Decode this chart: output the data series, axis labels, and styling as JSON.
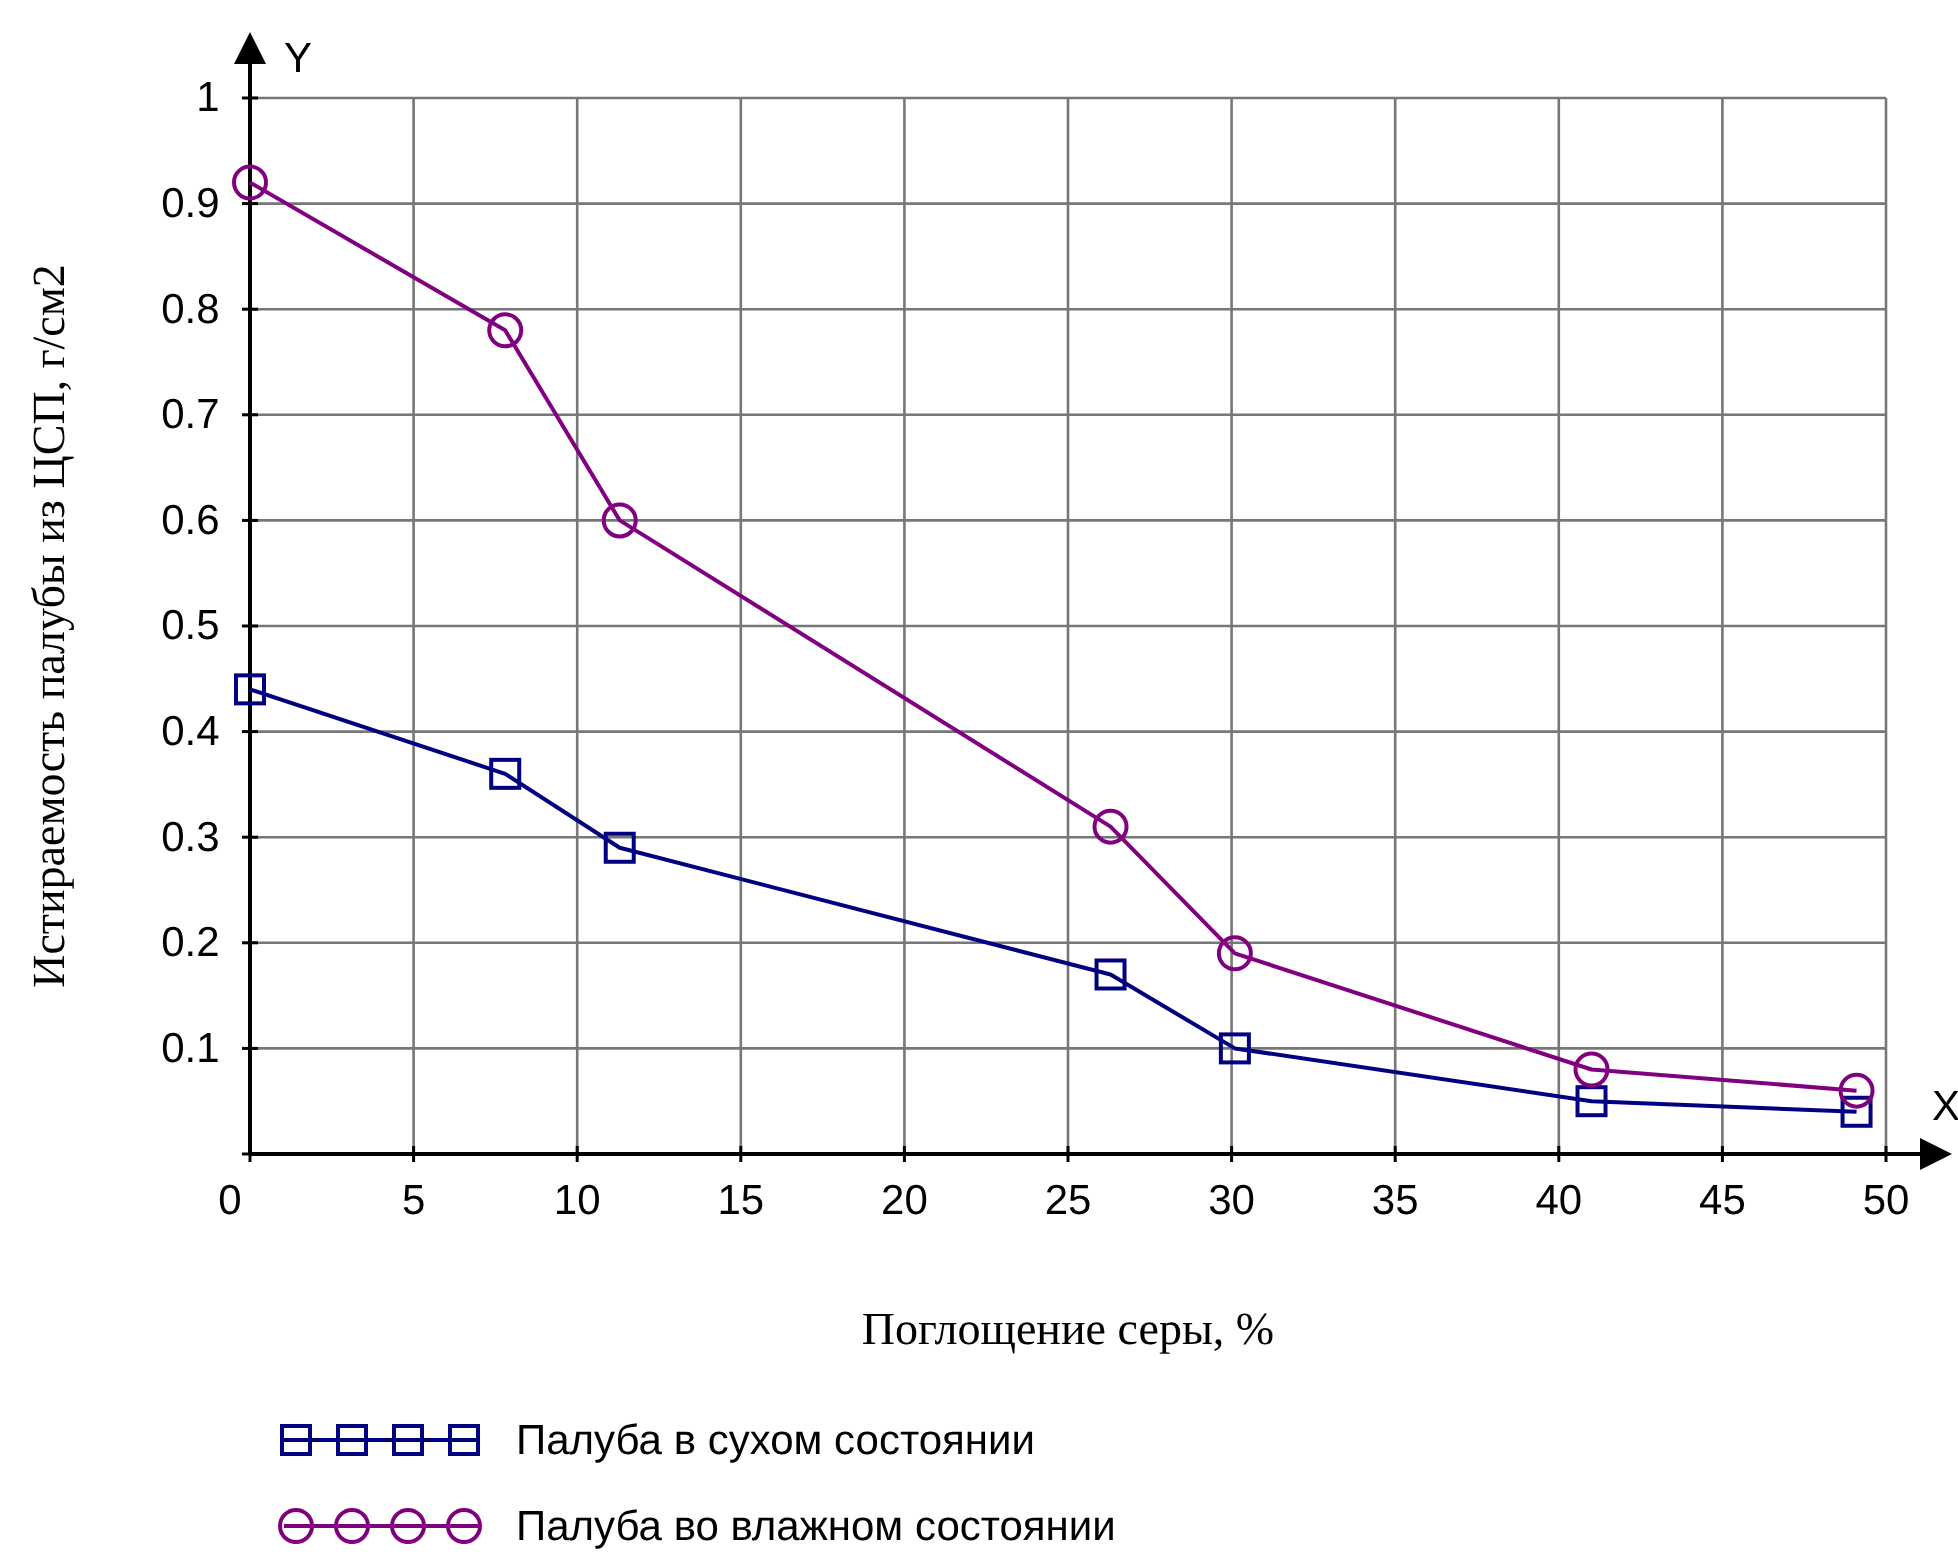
{
  "chart_data": {
    "type": "line",
    "xlabel": "Поглощение серы, %",
    "ylabel": "Истираемость палубы из ЦСП, г/см2",
    "annotations": [
      "X",
      "Y"
    ],
    "xlim": [
      0,
      50
    ],
    "ylim": [
      0,
      1
    ],
    "xticks": [
      0,
      5,
      10,
      15,
      20,
      25,
      30,
      35,
      40,
      45,
      50
    ],
    "yticks": [
      {
        "value": 0,
        "label": null
      },
      0.1,
      0.2,
      0.3,
      0.4,
      0.5,
      0.6,
      0.7,
      0.8,
      0.9,
      1
    ],
    "grid": true,
    "legend": "bottom",
    "line_style": "solid",
    "series": [
      {
        "name": "Палуба в сухом состоянии",
        "color": "#000080",
        "marker": "square",
        "x": [
          0,
          7.8,
          11.3,
          26.3,
          30.1,
          41,
          49.1
        ],
        "values": [
          0.44,
          0.36,
          0.29,
          0.17,
          0.1,
          0.05,
          0.04
        ]
      },
      {
        "name": "Палуба во влажном состоянии",
        "color": "#800080",
        "marker": "circle",
        "x": [
          0,
          7.8,
          11.3,
          26.3,
          30.1,
          41,
          49.1
        ],
        "values": [
          0.92,
          0.78,
          0.6,
          0.31,
          0.19,
          0.08,
          0.06
        ]
      }
    ]
  }
}
